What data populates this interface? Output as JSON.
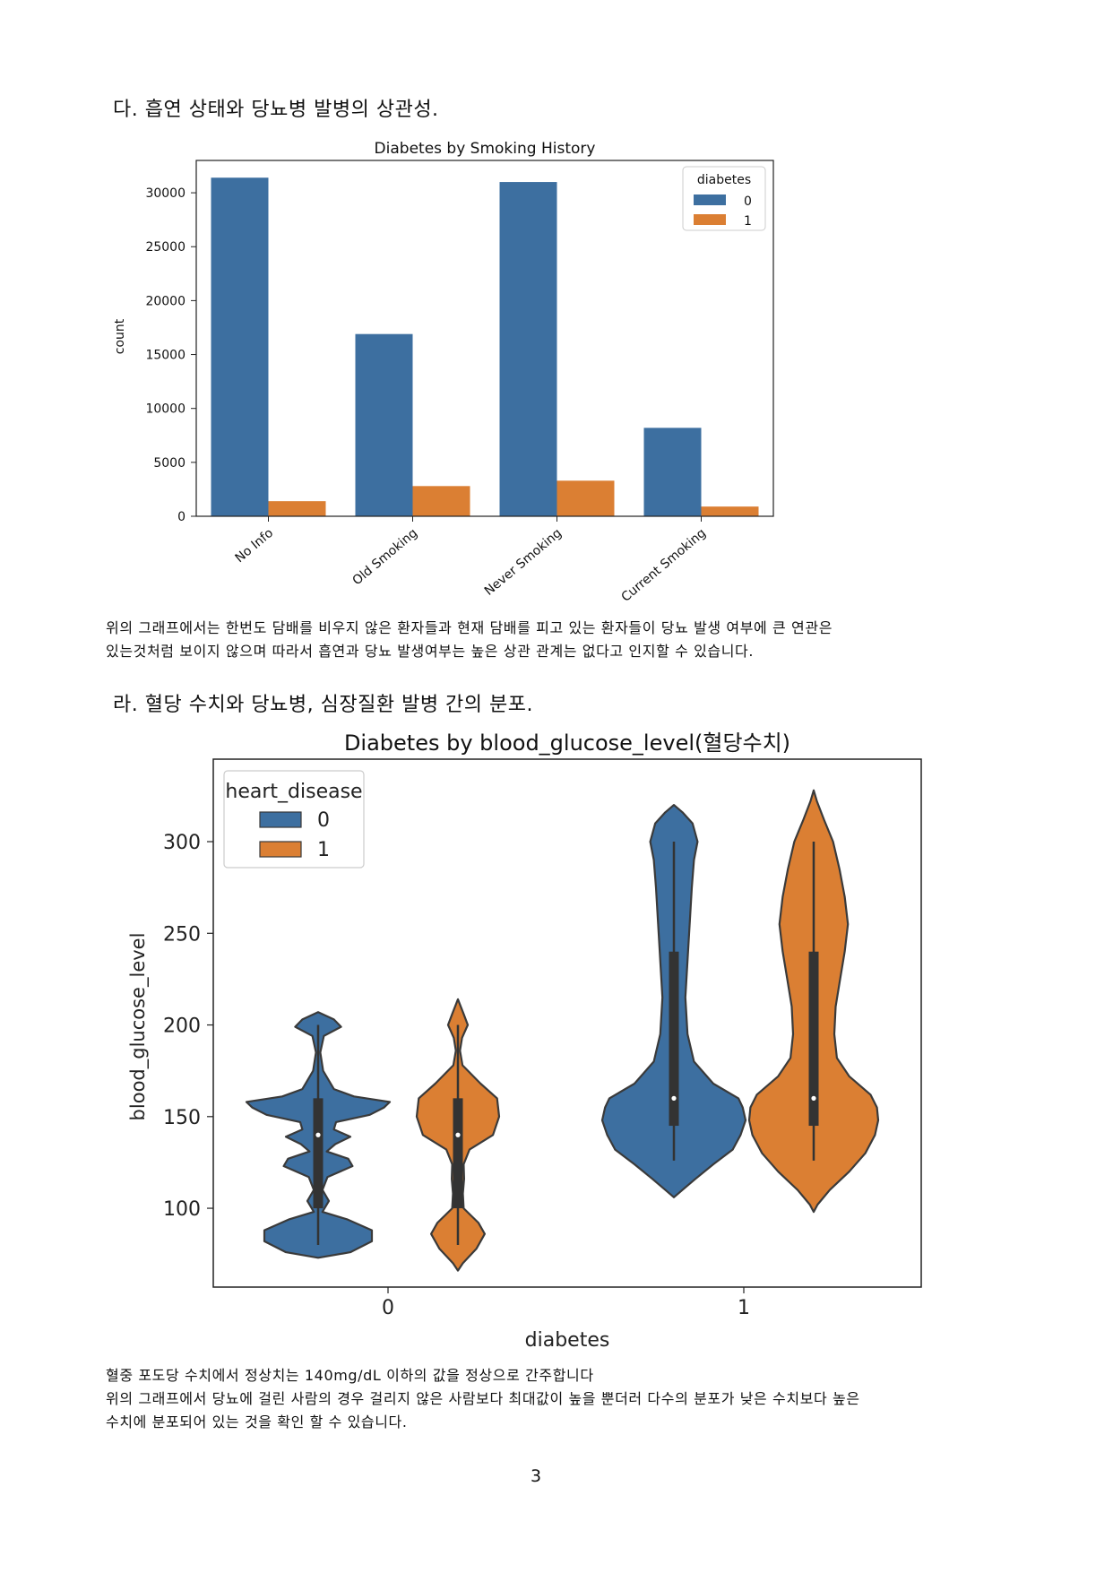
{
  "section_c": {
    "heading": "다. 흡연 상태와 당뇨병 발병의 상관성."
  },
  "section_c_text": {
    "line1": "위의 그래프에서는 한번도 담배를 비우지 않은 환자들과 현재 담배를 피고 있는 환자들이 당뇨 발생 여부에 큰 연관은",
    "line2": "있는것처럼 보이지 않으며 따라서 흡연과 당뇨 발생여부는 높은 상관 관계는 없다고 인지할 수 있습니다."
  },
  "section_d": {
    "heading": "라. 혈당 수치와 당뇨병, 심장질환 발병 간의 분포."
  },
  "section_d_text": {
    "line1": "혈중 포도당 수치에서 정상치는 140mg/dL 이하의 값을 정상으로 간주합니다",
    "line2": "위의 그래프에서 당뇨에 걸린 사람의 경우 걸리지 않은 사람보다 최대값이 높을 뿐더러 다수의 분포가 낮은 수치보다 높은",
    "line3": "수치에 분포되어 있는 것을 확인 할 수 있습니다."
  },
  "page_number": "3",
  "colors": {
    "blue": "#3d6fa0",
    "orange": "#db7f33",
    "box": "#333333"
  },
  "chart_data": [
    {
      "type": "bar",
      "title": "Diabetes by Smoking History",
      "xlabel": "",
      "ylabel": "count",
      "categories": [
        "No Info",
        "Old Smoking",
        "Never Smoking",
        "Current Smoking"
      ],
      "series": [
        {
          "name": "0",
          "values": [
            31400,
            16900,
            31000,
            8200
          ]
        },
        {
          "name": "1",
          "values": [
            1400,
            2800,
            3300,
            900
          ]
        }
      ],
      "ylim": [
        0,
        33000
      ],
      "yticks": [
        0,
        5000,
        10000,
        15000,
        20000,
        25000,
        30000
      ],
      "legend": {
        "title": "diabetes",
        "position": "top-right"
      },
      "grid": false
    },
    {
      "type": "violin",
      "title": "Diabetes by blood_glucose_level(혈당수치)",
      "xlabel": "diabetes",
      "ylabel": "blood_glucose_level",
      "categories": [
        "0",
        "1"
      ],
      "series": [
        {
          "name": "0",
          "groups": [
            {
              "category": "0",
              "min": 80,
              "q1": 100,
              "median": 140,
              "q3": 160,
              "max": 200,
              "extent": [
                73,
                207
              ]
            },
            {
              "category": "1",
              "min": 126,
              "q1": 145,
              "median": 160,
              "q3": 240,
              "max": 300,
              "extent": [
                106,
                320
              ]
            }
          ]
        },
        {
          "name": "1",
          "groups": [
            {
              "category": "0",
              "min": 80,
              "q1": 100,
              "median": 140,
              "q3": 160,
              "max": 200,
              "extent": [
                66,
                214
              ]
            },
            {
              "category": "1",
              "min": 126,
              "q1": 145,
              "median": 160,
              "q3": 240,
              "max": 300,
              "extent": [
                98,
                328
              ]
            }
          ]
        }
      ],
      "ylim": [
        57,
        345
      ],
      "yticks": [
        100,
        150,
        200,
        250,
        300
      ],
      "legend": {
        "title": "heart_disease",
        "position": "top-left"
      },
      "grid": false
    }
  ]
}
